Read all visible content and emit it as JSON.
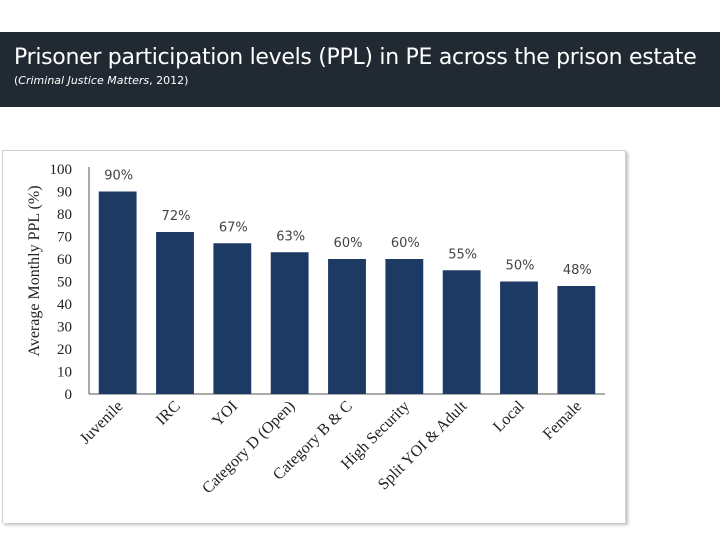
{
  "header": {
    "title": "Prisoner participation levels (PPL) in PE across the prison estate",
    "source_open": "(",
    "source_italic": "Criminal Justice Matters",
    "source_rest": ", 2012)"
  },
  "colors": {
    "bar": "#1c3a63",
    "header_bg": "#212a33"
  },
  "chart_data": {
    "type": "bar",
    "title": "",
    "xlabel": "",
    "ylabel": "Average Monthly PPL (%)",
    "ylim": [
      0,
      100
    ],
    "yticks": [
      "0",
      "10",
      "20",
      "30",
      "40",
      "50",
      "60",
      "70",
      "80",
      "90",
      "100"
    ],
    "categories": [
      "Juvenile",
      "IRC",
      "YOI",
      "Category D (Open)",
      "Category B & C",
      "High Security",
      "Split YOI & Adult",
      "Local",
      "Female"
    ],
    "values": [
      90,
      72,
      67,
      63,
      60,
      60,
      55,
      50,
      48
    ],
    "data_labels": [
      "90%",
      "72%",
      "67%",
      "63%",
      "60%",
      "60%",
      "55%",
      "50%",
      "48%"
    ]
  }
}
